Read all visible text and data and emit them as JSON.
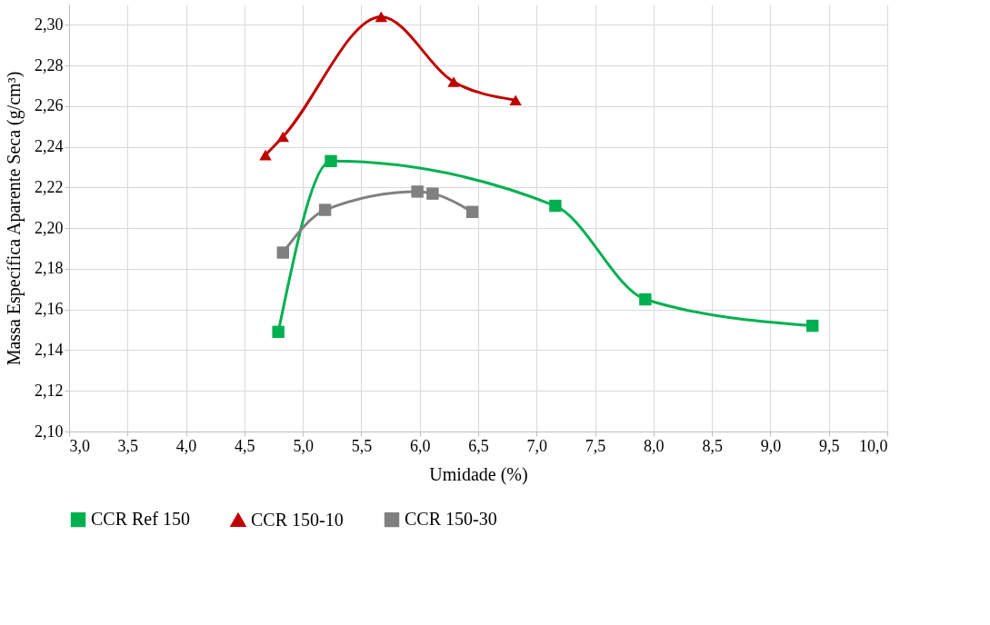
{
  "chart_data": {
    "type": "line",
    "xlabel": "Umidade (%)",
    "ylabel": "Massa Específica Aparente Seca (g/cm³)",
    "xlim": [
      3.0,
      10.0
    ],
    "xticks": [
      {
        "value": 3.0,
        "label": "3,0"
      },
      {
        "value": 3.5,
        "label": "3,5"
      },
      {
        "value": 4.0,
        "label": "4,0"
      },
      {
        "value": 4.5,
        "label": "4,5"
      },
      {
        "value": 5.0,
        "label": "5,0"
      },
      {
        "value": 5.5,
        "label": "5,5"
      },
      {
        "value": 6.0,
        "label": "6,0"
      },
      {
        "value": 6.5,
        "label": "6,5"
      },
      {
        "value": 7.0,
        "label": "7,0"
      },
      {
        "value": 7.5,
        "label": "7,5"
      },
      {
        "value": 8.0,
        "label": "8,0"
      },
      {
        "value": 8.5,
        "label": "8,5"
      },
      {
        "value": 9.0,
        "label": "9,0"
      },
      {
        "value": 9.5,
        "label": "9,5"
      },
      {
        "value": 10.0,
        "label": "10,0"
      }
    ],
    "ylim": [
      2.1,
      2.31
    ],
    "yticks": [
      {
        "value": 2.1,
        "label": "2,10"
      },
      {
        "value": 2.12,
        "label": "2,12"
      },
      {
        "value": 2.14,
        "label": "2,14"
      },
      {
        "value": 2.16,
        "label": "2,16"
      },
      {
        "value": 2.18,
        "label": "2,18"
      },
      {
        "value": 2.2,
        "label": "2,20"
      },
      {
        "value": 2.22,
        "label": "2,22"
      },
      {
        "value": 2.24,
        "label": "2,24"
      },
      {
        "value": 2.26,
        "label": "2,26"
      },
      {
        "value": 2.28,
        "label": "2,28"
      },
      {
        "value": 2.3,
        "label": "2,30"
      }
    ],
    "grid": true,
    "legend": "bottom",
    "line_style": "solid",
    "series": [
      {
        "name": "CCR Ref 150",
        "color": "#00b050",
        "marker": "square",
        "x": [
          4.79,
          5.24,
          7.16,
          7.93,
          9.36
        ],
        "values": [
          2.149,
          2.233,
          2.211,
          2.165,
          2.152
        ]
      },
      {
        "name": "CCR 150-10",
        "color": "#c00000",
        "marker": "triangle",
        "x": [
          4.68,
          4.83,
          5.67,
          6.29,
          6.82
        ],
        "values": [
          2.236,
          2.245,
          2.304,
          2.272,
          2.263
        ]
      },
      {
        "name": "CCR 150-30",
        "color": "#808080",
        "marker": "square",
        "x": [
          4.83,
          5.19,
          5.98,
          6.11,
          6.45
        ],
        "values": [
          2.188,
          2.209,
          2.218,
          2.217,
          2.208
        ]
      }
    ]
  }
}
